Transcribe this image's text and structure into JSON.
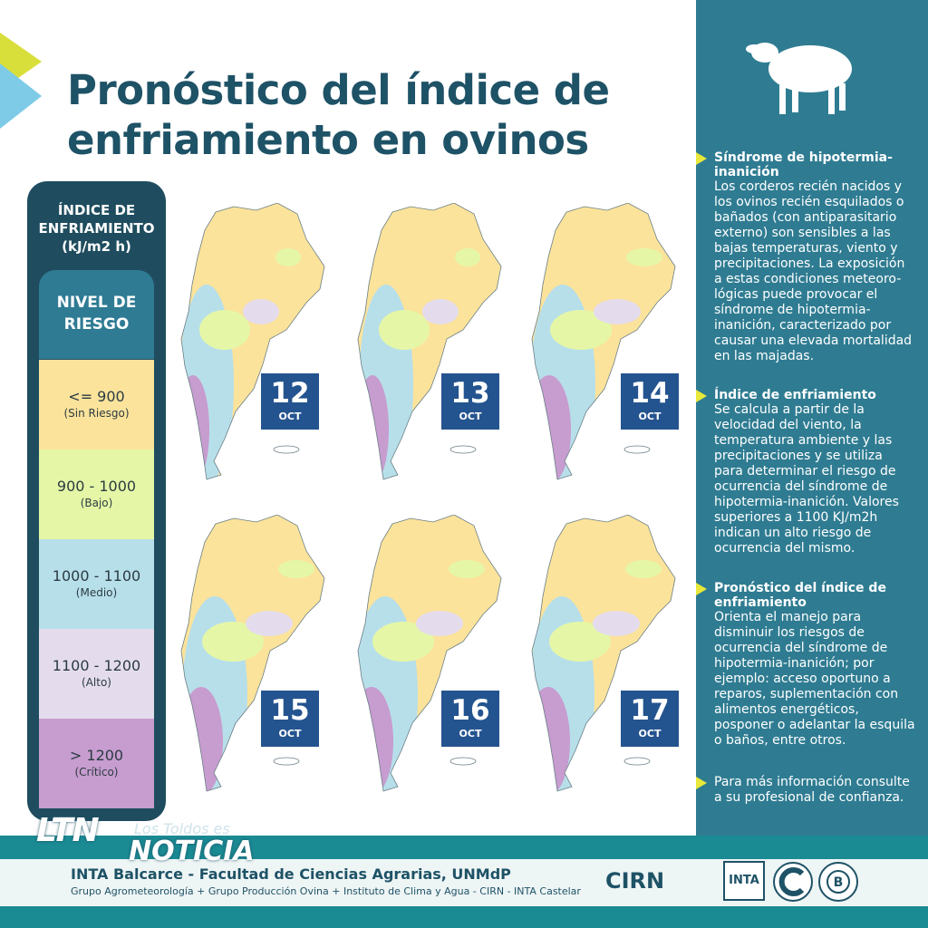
{
  "title": "Pronóstico del índice de enfriamiento en ovinos",
  "legend": {
    "header": [
      "ÍNDICE DE",
      "ENFRIAMIENTO",
      "(kJ/m2 h)"
    ],
    "level_title": [
      "NIVEL DE",
      "RIESGO"
    ],
    "bands": [
      {
        "value": "<= 900",
        "category": "(Sin Riesgo)",
        "color": "#fbe39b"
      },
      {
        "value": "900 - 1000",
        "category": "(Bajo)",
        "color": "#e5f7a6"
      },
      {
        "value": "1000 - 1100",
        "category": "(Medio)",
        "color": "#b7dfea"
      },
      {
        "value": "1100 - 1200",
        "category": "(Alto)",
        "color": "#e4dcec"
      },
      {
        "value": "> 1200",
        "category": "(Crítico)",
        "color": "#c79ccf"
      }
    ]
  },
  "maps": [
    {
      "day": "12",
      "month": "OCT"
    },
    {
      "day": "13",
      "month": "OCT"
    },
    {
      "day": "14",
      "month": "OCT"
    },
    {
      "day": "15",
      "month": "OCT"
    },
    {
      "day": "16",
      "month": "OCT"
    },
    {
      "day": "17",
      "month": "OCT"
    }
  ],
  "info": [
    {
      "heading": "Síndrome de hipotermia-inanición",
      "body": "Los corderos recién nacidos y los ovinos recién esquilados o bañados (con antiparasitario externo) son sensibles a las bajas temperaturas, viento y precipitaciones. La exposición a estas condiciones meteoro-lógicas puede provocar el síndrome de hipotermia-inanición, caracterizado por causar una elevada mortalidad en las majadas."
    },
    {
      "heading": "Índice de enfriamiento",
      "body": "Se calcula a partir de la velocidad del viento, la temperatura ambiente y las precipitaciones y se utiliza para determinar el riesgo de ocurrencia del síndrome de hipotermia-inanición. Valores superiores a 1100 KJ/m2h indican un alto riesgo de ocurrencia del mismo."
    },
    {
      "heading": "Pronóstico del índice de enfriamiento",
      "body": "Orienta el manejo para disminuir los riesgos de ocurrencia del síndrome de hipotermia-inanición; por ejemplo: acceso oportuno a reparos, suplementación con alimentos energéticos, posponer o adelantar la esquila o baños, entre otros."
    },
    {
      "heading": "",
      "body": "Para más información consulte a su profesional de confianza."
    }
  ],
  "footer": {
    "institution": "INTA Balcarce - Facultad de Ciencias Agrarias, UNMdP",
    "groups": "Grupo Agrometeorología + Grupo Producción Ovina + Instituto de Clima y Agua - CIRN - INTA Castelar",
    "cirn": "CIRN",
    "inta": "INTA",
    "watermark_ltn": "LTN",
    "watermark_los_toldos": "Los Toldos es",
    "watermark_noticia": "NOTICIA"
  }
}
